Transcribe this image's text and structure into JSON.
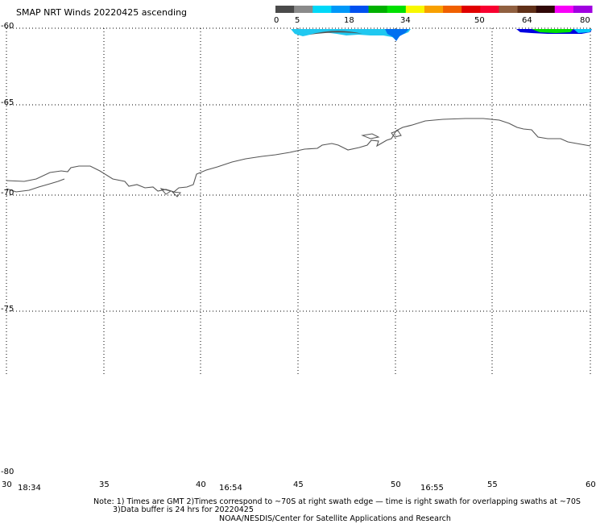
{
  "title": "SMAP NRT Winds 20220425 ascending",
  "colorbar": {
    "labels": [
      "0",
      "5",
      "18",
      "34",
      "50",
      "64",
      "80"
    ],
    "colors": [
      "#4a4a4a",
      "#8a8a8a",
      "#00d8f8",
      "#0098f8",
      "#0050f0",
      "#00b000",
      "#00e000",
      "#f8f800",
      "#f8a000",
      "#f06000",
      "#e00000",
      "#f80030",
      "#906040",
      "#603018",
      "#300808",
      "#f800f8",
      "#a000e0"
    ]
  },
  "lat_labels": [
    "-60",
    "-65",
    "-70",
    "-75",
    "-80"
  ],
  "lon_labels": [
    "30",
    "35",
    "40",
    "45",
    "50",
    "55",
    "60"
  ],
  "times": [
    "18:34",
    "16:54",
    "16:55"
  ],
  "notes": {
    "line1": "Note: 1) Times are GMT 2)Times correspond to ~70S at right swath edge — time is right swath for overlapping swaths at ~70S",
    "line2": "3)Data buffer is 24 hrs for 20220425",
    "line3": "NOAA/NESDIS/Center for Satellite Applications and Research"
  }
}
